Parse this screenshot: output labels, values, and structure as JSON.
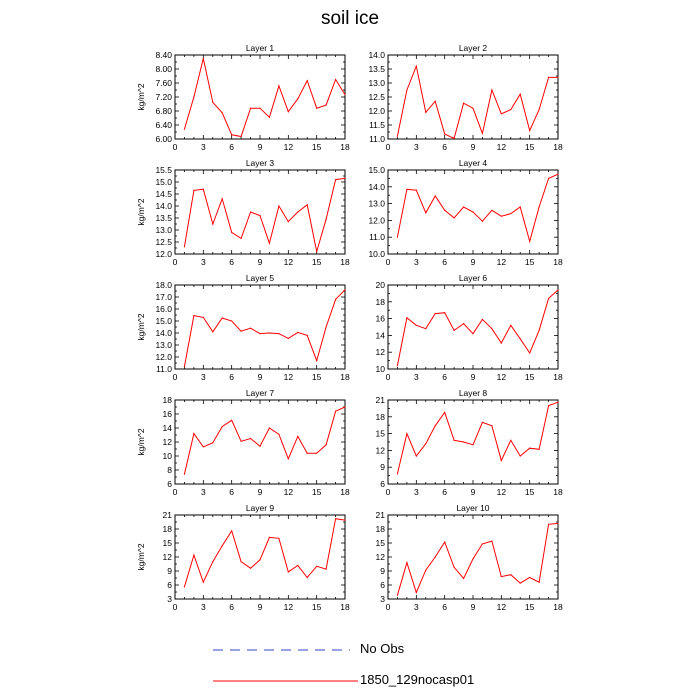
{
  "title": "soil ice",
  "legend": {
    "items": [
      {
        "label": "No Obs",
        "style": "dashed",
        "color": "#3344cc"
      },
      {
        "label": "1850_129nocasp01",
        "style": "solid",
        "color": "#ff0000"
      }
    ]
  },
  "chart_data": [
    {
      "type": "line",
      "title": "Layer 1",
      "ylabel": "kg/m^2",
      "xlim": [
        0,
        18
      ],
      "ylim": [
        6.0,
        8.4
      ],
      "xticks": [
        0,
        3,
        6,
        9,
        12,
        15,
        18
      ],
      "yticks": [
        6.0,
        6.4,
        6.8,
        7.2,
        7.6,
        8.0,
        8.4
      ],
      "ytick_labels": [
        "6.00",
        "6.40",
        "6.80",
        "7.20",
        "7.60",
        "8.00",
        "8.40"
      ],
      "series": [
        {
          "color": "#ff0000",
          "x": [
            1,
            2,
            3,
            4,
            5,
            6,
            7,
            8,
            9,
            10,
            11,
            12,
            13,
            14,
            15,
            16,
            17,
            18
          ],
          "y": [
            6.28,
            7.2,
            8.3,
            7.05,
            6.75,
            6.12,
            6.07,
            6.88,
            6.88,
            6.62,
            7.52,
            6.78,
            7.15,
            7.67,
            6.88,
            6.97,
            7.7,
            7.27
          ]
        }
      ]
    },
    {
      "type": "line",
      "title": "Layer 2",
      "ylabel": "",
      "xlim": [
        0,
        18
      ],
      "ylim": [
        11.0,
        14.0
      ],
      "xticks": [
        0,
        3,
        6,
        9,
        12,
        15,
        18
      ],
      "yticks": [
        11.0,
        11.5,
        12.0,
        12.5,
        13.0,
        13.5,
        14.0
      ],
      "ytick_labels": [
        "11.0",
        "11.5",
        "12.0",
        "12.5",
        "13.0",
        "13.5",
        "14.0"
      ],
      "series": [
        {
          "color": "#ff0000",
          "x": [
            1,
            2,
            3,
            4,
            5,
            6,
            7,
            8,
            9,
            10,
            11,
            12,
            13,
            14,
            15,
            16,
            17,
            18
          ],
          "y": [
            11.1,
            12.75,
            13.6,
            11.95,
            12.35,
            11.18,
            11.02,
            12.28,
            12.1,
            11.2,
            12.75,
            11.9,
            12.05,
            12.6,
            11.3,
            12.05,
            13.2,
            13.2
          ]
        }
      ]
    },
    {
      "type": "line",
      "title": "Layer 3",
      "ylabel": "kg/m^2",
      "xlim": [
        0,
        18
      ],
      "ylim": [
        12.0,
        15.5
      ],
      "xticks": [
        0,
        3,
        6,
        9,
        12,
        15,
        18
      ],
      "yticks": [
        12.0,
        12.5,
        13.0,
        13.5,
        14.0,
        14.5,
        15.0,
        15.5
      ],
      "ytick_labels": [
        "12.0",
        "12.5",
        "13.0",
        "13.5",
        "14.0",
        "14.5",
        "15.0",
        "15.5"
      ],
      "series": [
        {
          "color": "#ff0000",
          "x": [
            1,
            2,
            3,
            4,
            5,
            6,
            7,
            8,
            9,
            10,
            11,
            12,
            13,
            14,
            15,
            16,
            17,
            18
          ],
          "y": [
            12.3,
            14.65,
            14.7,
            13.25,
            14.3,
            12.9,
            12.65,
            13.75,
            13.6,
            12.45,
            14.0,
            13.35,
            13.75,
            14.05,
            12.1,
            13.45,
            15.1,
            15.15
          ]
        }
      ]
    },
    {
      "type": "line",
      "title": "Layer 4",
      "ylabel": "",
      "xlim": [
        0,
        18
      ],
      "ylim": [
        10.0,
        15.0
      ],
      "xticks": [
        0,
        3,
        6,
        9,
        12,
        15,
        18
      ],
      "yticks": [
        10.0,
        11.0,
        12.0,
        13.0,
        14.0,
        15.0
      ],
      "ytick_labels": [
        "10.0",
        "11.0",
        "12.0",
        "13.0",
        "14.0",
        "15.0"
      ],
      "series": [
        {
          "color": "#ff0000",
          "x": [
            1,
            2,
            3,
            4,
            5,
            6,
            7,
            8,
            9,
            10,
            11,
            12,
            13,
            14,
            15,
            16,
            17,
            18
          ],
          "y": [
            11.0,
            13.85,
            13.8,
            12.45,
            13.45,
            12.6,
            12.15,
            12.8,
            12.5,
            11.95,
            12.6,
            12.25,
            12.4,
            12.8,
            10.75,
            12.8,
            14.5,
            14.75
          ]
        }
      ]
    },
    {
      "type": "line",
      "title": "Layer 5",
      "ylabel": "kg/m^2",
      "xlim": [
        0,
        18
      ],
      "ylim": [
        11.0,
        18.0
      ],
      "xticks": [
        0,
        3,
        6,
        9,
        12,
        15,
        18
      ],
      "yticks": [
        11.0,
        12.0,
        13.0,
        14.0,
        15.0,
        16.0,
        17.0,
        18.0
      ],
      "ytick_labels": [
        "11.0",
        "12.0",
        "13.0",
        "14.0",
        "15.0",
        "16.0",
        "17.0",
        "18.0"
      ],
      "series": [
        {
          "color": "#ff0000",
          "x": [
            1,
            2,
            3,
            4,
            5,
            6,
            7,
            8,
            9,
            10,
            11,
            12,
            13,
            14,
            15,
            16,
            17,
            18
          ],
          "y": [
            11.2,
            15.45,
            15.3,
            14.1,
            15.25,
            15.0,
            14.15,
            14.4,
            13.95,
            14.0,
            13.95,
            13.55,
            14.05,
            13.8,
            11.7,
            14.5,
            16.8,
            17.6
          ]
        }
      ]
    },
    {
      "type": "line",
      "title": "Layer 6",
      "ylabel": "",
      "xlim": [
        0,
        18
      ],
      "ylim": [
        10,
        20
      ],
      "xticks": [
        0,
        3,
        6,
        9,
        12,
        15,
        18
      ],
      "yticks": [
        10,
        12,
        14,
        16,
        18,
        20
      ],
      "ytick_labels": [
        "10",
        "12",
        "14",
        "16",
        "18",
        "20"
      ],
      "series": [
        {
          "color": "#ff0000",
          "x": [
            1,
            2,
            3,
            4,
            5,
            6,
            7,
            8,
            9,
            10,
            11,
            12,
            13,
            14,
            15,
            16,
            17,
            18
          ],
          "y": [
            10.4,
            16.1,
            15.2,
            14.8,
            16.6,
            16.7,
            14.6,
            15.4,
            14.2,
            15.9,
            14.8,
            13.1,
            15.2,
            13.6,
            11.9,
            14.6,
            18.4,
            19.4
          ]
        }
      ]
    },
    {
      "type": "line",
      "title": "Layer 7",
      "ylabel": "kg/m^2",
      "xlim": [
        0,
        18
      ],
      "ylim": [
        6,
        18
      ],
      "xticks": [
        0,
        3,
        6,
        9,
        12,
        15,
        18
      ],
      "yticks": [
        6,
        8,
        10,
        12,
        14,
        16,
        18
      ],
      "ytick_labels": [
        "6",
        "8",
        "10",
        "12",
        "14",
        "16",
        "18"
      ],
      "series": [
        {
          "color": "#ff0000",
          "x": [
            1,
            2,
            3,
            4,
            5,
            6,
            7,
            8,
            9,
            10,
            11,
            12,
            13,
            14,
            15,
            16,
            17,
            18
          ],
          "y": [
            7.4,
            13.2,
            11.3,
            11.9,
            14.2,
            15.1,
            12.1,
            12.5,
            11.4,
            14.0,
            13.1,
            9.6,
            12.8,
            10.4,
            10.4,
            11.6,
            16.4,
            17.0
          ]
        }
      ]
    },
    {
      "type": "line",
      "title": "Layer 8",
      "ylabel": "",
      "xlim": [
        0,
        18
      ],
      "ylim": [
        6,
        21
      ],
      "xticks": [
        0,
        3,
        6,
        9,
        12,
        15,
        18
      ],
      "yticks": [
        6,
        9,
        12,
        15,
        18,
        21
      ],
      "ytick_labels": [
        "6",
        "9",
        "12",
        "15",
        "18",
        "21"
      ],
      "series": [
        {
          "color": "#ff0000",
          "x": [
            1,
            2,
            3,
            4,
            5,
            6,
            7,
            8,
            9,
            10,
            11,
            12,
            13,
            14,
            15,
            16,
            17,
            18
          ],
          "y": [
            7.8,
            15.0,
            11.0,
            13.2,
            16.4,
            18.8,
            13.8,
            13.5,
            13.0,
            17.0,
            16.4,
            10.2,
            13.8,
            11.0,
            12.4,
            12.2,
            20.0,
            20.6
          ]
        }
      ]
    },
    {
      "type": "line",
      "title": "Layer 9",
      "ylabel": "kg/m^2",
      "xlim": [
        0,
        18
      ],
      "ylim": [
        3,
        21
      ],
      "xticks": [
        0,
        3,
        6,
        9,
        12,
        15,
        18
      ],
      "yticks": [
        3,
        6,
        9,
        12,
        15,
        18,
        21
      ],
      "ytick_labels": [
        "3",
        "6",
        "9",
        "12",
        "15",
        "18",
        "21"
      ],
      "series": [
        {
          "color": "#ff0000",
          "x": [
            1,
            2,
            3,
            4,
            5,
            6,
            7,
            8,
            9,
            10,
            11,
            12,
            13,
            14,
            15,
            16,
            17,
            18
          ],
          "y": [
            5.6,
            12.4,
            6.6,
            11.0,
            14.4,
            17.6,
            11.0,
            9.6,
            11.4,
            16.2,
            16.0,
            8.8,
            10.2,
            7.6,
            10.0,
            9.4,
            20.2,
            19.9
          ]
        }
      ]
    },
    {
      "type": "line",
      "title": "Layer 10",
      "ylabel": "",
      "xlim": [
        0,
        18
      ],
      "ylim": [
        3,
        21
      ],
      "xticks": [
        0,
        3,
        6,
        9,
        12,
        15,
        18
      ],
      "yticks": [
        3,
        6,
        9,
        12,
        15,
        18,
        21
      ],
      "ytick_labels": [
        "3",
        "6",
        "9",
        "12",
        "15",
        "18",
        "21"
      ],
      "series": [
        {
          "color": "#ff0000",
          "x": [
            1,
            2,
            3,
            4,
            5,
            6,
            7,
            8,
            9,
            10,
            11,
            12,
            13,
            14,
            15,
            16,
            17,
            18
          ],
          "y": [
            3.8,
            10.8,
            4.4,
            9.2,
            12.0,
            15.2,
            9.8,
            7.4,
            11.6,
            14.8,
            15.4,
            7.8,
            8.2,
            6.4,
            7.6,
            6.6,
            19.0,
            19.2
          ]
        }
      ]
    }
  ]
}
